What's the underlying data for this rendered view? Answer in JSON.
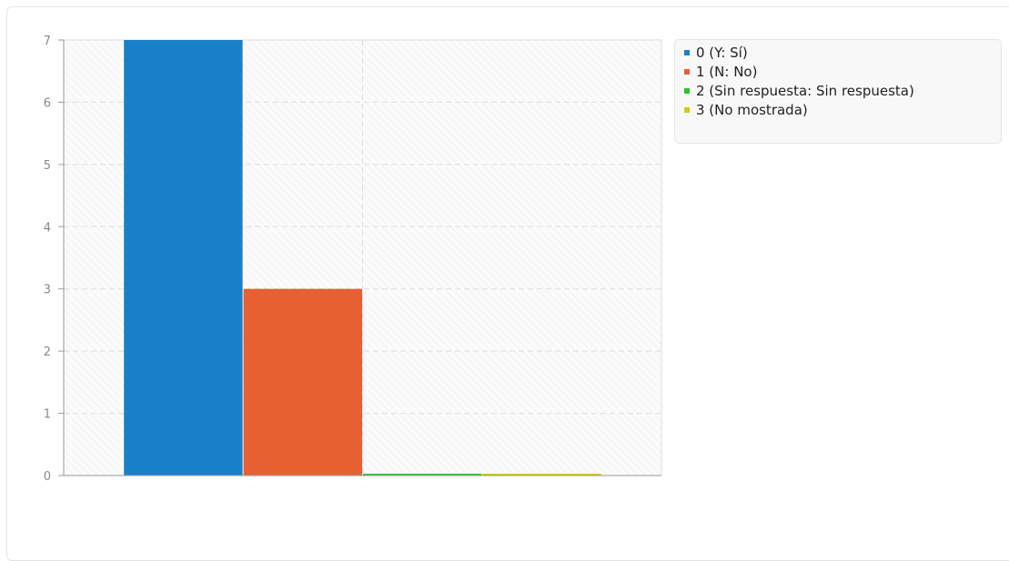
{
  "chart_data": {
    "type": "bar",
    "categories": [
      ""
    ],
    "series": [
      {
        "name": "0 (Y: Sí)",
        "values": [
          7
        ],
        "color": "#1a7fc9"
      },
      {
        "name": "1 (N: No)",
        "values": [
          3
        ],
        "color": "#e66032"
      },
      {
        "name": "2 (Sin respuesta: Sin respuesta)",
        "values": [
          0
        ],
        "color": "#2ec42e"
      },
      {
        "name": "3 (No mostrada)",
        "values": [
          0
        ],
        "color": "#d5c71a"
      }
    ],
    "title": "",
    "xlabel": "",
    "ylabel": "",
    "ylim": [
      0,
      7
    ],
    "yticks": [
      "0",
      "1",
      "2",
      "3",
      "4",
      "5",
      "6",
      "7"
    ],
    "grid": true,
    "legend_position": "right"
  }
}
